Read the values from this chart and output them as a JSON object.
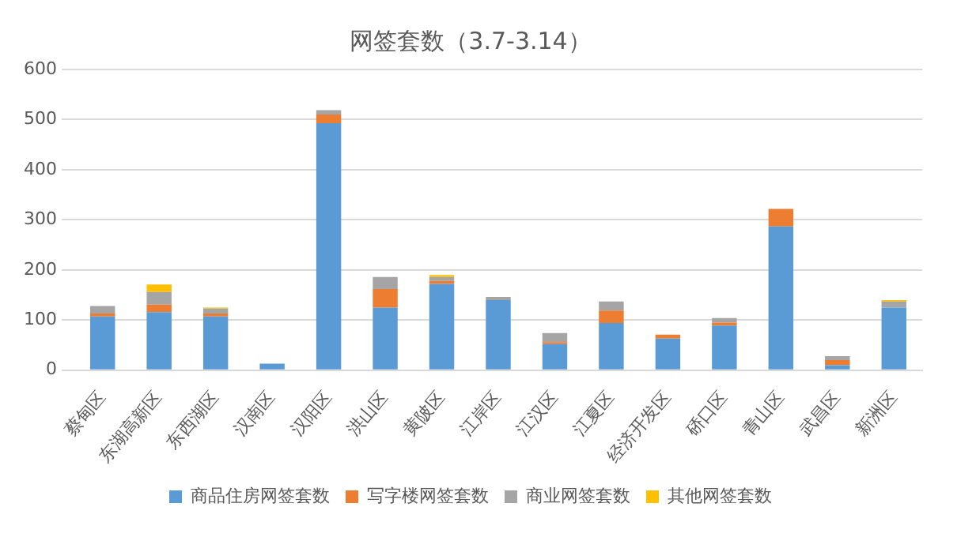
{
  "chart_data": {
    "type": "bar",
    "title": "网签套数（3.7-3.14）",
    "stacked": true,
    "grid": "y",
    "legend": "bottom",
    "ylim": [
      0,
      600
    ],
    "yticks": [
      0,
      100,
      200,
      300,
      400,
      500,
      600
    ],
    "categories": [
      "蔡甸区",
      "东湖高新区",
      "东西湖区",
      "汉南区",
      "汉阳区",
      "洪山区",
      "黄陂区",
      "江岸区",
      "江汉区",
      "江夏区",
      "经济开发区",
      "硚口区",
      "青山区",
      "武昌区",
      "新洲区"
    ],
    "series": [
      {
        "name": "商品住房网签套数",
        "color": "#5b9bd5",
        "values": [
          107,
          116,
          107,
          13,
          493,
          125,
          172,
          140,
          52,
          94,
          63,
          89,
          287,
          10,
          125
        ]
      },
      {
        "name": "写字楼网签套数",
        "color": "#ed7d31",
        "values": [
          6,
          15,
          6,
          0,
          17,
          37,
          6,
          0,
          4,
          25,
          8,
          6,
          35,
          10,
          0
        ]
      },
      {
        "name": "商业网签套数",
        "color": "#a5a5a5",
        "values": [
          15,
          25,
          10,
          0,
          9,
          24,
          8,
          6,
          18,
          18,
          0,
          9,
          0,
          8,
          12
        ]
      },
      {
        "name": "其他网签套数",
        "color": "#ffc000",
        "values": [
          0,
          15,
          2,
          0,
          0,
          0,
          4,
          0,
          0,
          0,
          0,
          0,
          0,
          0,
          3
        ]
      }
    ]
  }
}
